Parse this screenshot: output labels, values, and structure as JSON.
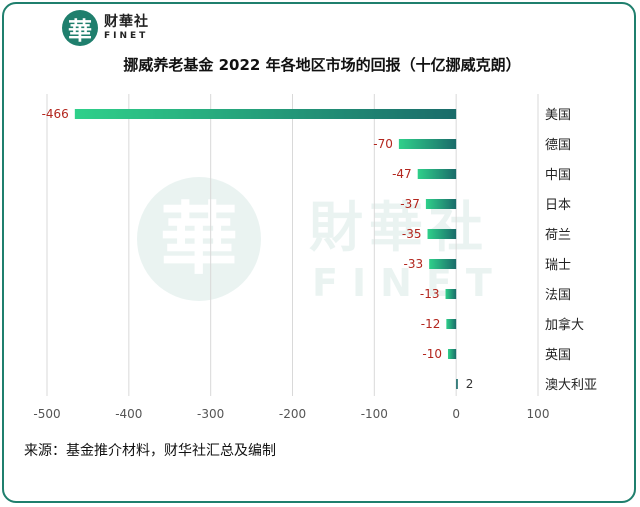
{
  "header": {
    "logo_glyph": "華",
    "logo_cn": "财華社",
    "logo_en": "FINET",
    "title": "挪威养老基金 2022 年各地区市场的回报（十亿挪威克朗）"
  },
  "footer": {
    "source": "来源：基金推介材料，财华社汇总及编制"
  },
  "watermark": {
    "glyph": "華",
    "cn": "財華社",
    "en": "FINET"
  },
  "colors": {
    "bar_start": "#2fd08a",
    "bar_end": "#1a6b6a",
    "negative_label": "#b3261e",
    "positive_label": "#333333",
    "brand": "#1f7f6d"
  },
  "chart_data": {
    "type": "bar",
    "orientation": "horizontal",
    "title": "挪威养老基金 2022 年各地区市场的回报（十亿挪威克朗）",
    "xlabel": "",
    "ylabel": "",
    "xlim": [
      -500,
      100
    ],
    "xticks": [
      -500,
      -400,
      -300,
      -200,
      -100,
      0,
      100
    ],
    "xtick_labels": [
      "-500",
      "-400",
      "-300",
      "-200",
      "-100",
      "0",
      "100"
    ],
    "grid": "vertical",
    "categories": [
      "美国",
      "德国",
      "中国",
      "日本",
      "荷兰",
      "瑞士",
      "法国",
      "加拿大",
      "英国",
      "澳大利亚"
    ],
    "values": [
      -466,
      -70,
      -47,
      -37,
      -35,
      -33,
      -13,
      -12,
      -10,
      2
    ],
    "value_labels": [
      "-466",
      "-70",
      "-47",
      "-37",
      "-35",
      "-33",
      "-13",
      "-12",
      "-10",
      "2"
    ]
  }
}
